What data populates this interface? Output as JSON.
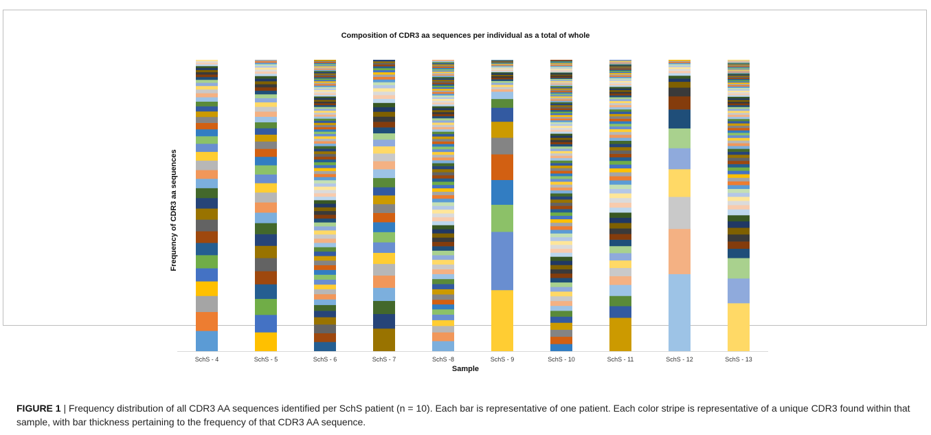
{
  "chart_data": {
    "type": "bar",
    "stacked": true,
    "title": "Composition of CDR3 aa sequences per individual as a total of whole",
    "xlabel": "Sample",
    "ylabel": "Frequency of CDR3 aa sequences",
    "ylim": [
      0,
      1
    ],
    "grid": false,
    "legend": "none",
    "categories": [
      "SchS - 4",
      "SchS - 5",
      "SchS - 6",
      "SchS - 7",
      "SchS -8",
      "SchS - 9",
      "SchS - 10",
      "SchS - 11",
      "SchS - 12",
      "SchS - 13"
    ],
    "samples": [
      {
        "segments": [
          0.07,
          0.065,
          0.055,
          0.05,
          0.045,
          0.045,
          0.042,
          0.04,
          0.04,
          0.038,
          0.036,
          0.034,
          0.032,
          0.03
        ],
        "tail_count": 26,
        "tail_min": 0.004
      },
      {
        "segments": [
          0.065,
          0.06,
          0.055,
          0.05,
          0.045,
          0.045,
          0.042,
          0.04,
          0.038,
          0.036,
          0.035,
          0.034,
          0.032,
          0.03
        ],
        "tail_count": 28,
        "tail_min": 0.004
      },
      {
        "segments": [
          0.032,
          0.03,
          0.03,
          0.025,
          0.022,
          0.02,
          0.019,
          0.018,
          0.017,
          0.016
        ],
        "tail_count": 90,
        "tail_min": 0.003
      },
      {
        "segments": [
          0.078,
          0.05,
          0.045,
          0.045,
          0.042,
          0.04,
          0.038,
          0.036,
          0.035,
          0.034,
          0.032,
          0.03,
          0.03,
          0.028
        ],
        "tail_count": 30,
        "tail_min": 0.004
      },
      {
        "segments": [
          0.035,
          0.03,
          0.022,
          0.02,
          0.019,
          0.018,
          0.017,
          0.016
        ],
        "tail_count": 90,
        "tail_min": 0.003
      },
      {
        "segments": [
          0.21,
          0.2,
          0.093,
          0.085,
          0.088,
          0.057,
          0.055,
          0.048,
          0.03,
          0.025
        ],
        "tail_count": 30,
        "tail_min": 0.003
      },
      {
        "segments": [
          0.025,
          0.025,
          0.024,
          0.024,
          0.021,
          0.02
        ],
        "tail_count": 110,
        "tail_min": 0.003
      },
      {
        "segments": [
          0.115,
          0.04,
          0.035,
          0.038,
          0.03,
          0.028,
          0.026,
          0.025,
          0.024,
          0.022
        ],
        "tail_count": 70,
        "tail_min": 0.003
      },
      {
        "segments": [
          0.265,
          0.155,
          0.11,
          0.095,
          0.072,
          0.068,
          0.065,
          0.045,
          0.03,
          0.02
        ],
        "tail_count": 12,
        "tail_min": 0.005
      },
      {
        "segments": [
          0.165,
          0.085,
          0.07,
          0.032,
          0.025,
          0.024,
          0.023,
          0.022,
          0.021,
          0.02
        ],
        "tail_count": 75,
        "tail_min": 0.003
      }
    ]
  },
  "colors": {
    "palette": [
      "#5b9bd5",
      "#ed7d31",
      "#a5a5a5",
      "#ffc000",
      "#4472c4",
      "#70ad47",
      "#255e91",
      "#9e480e",
      "#636363",
      "#997300",
      "#264478",
      "#43682b",
      "#7cafdd",
      "#f1975a",
      "#b7b7b7",
      "#ffcd33",
      "#698ed0",
      "#8cc168",
      "#327dc2",
      "#d26012",
      "#848484",
      "#cc9a00",
      "#335aa1",
      "#5a8a39",
      "#9dc3e6",
      "#f4b183",
      "#c9c9c9",
      "#ffd966",
      "#8faadc",
      "#a9d18e",
      "#1f4e79",
      "#843c0c",
      "#3a3a3a",
      "#7f6000",
      "#203864",
      "#385723",
      "#bdd7ee",
      "#f8cbad",
      "#dbdbdb",
      "#ffe699",
      "#b4c7e7",
      "#c5e0b4"
    ],
    "axis": "#d9d9d9"
  },
  "caption": {
    "label": "FIGURE 1",
    "separator": " | ",
    "text": "Frequency distribution of all CDR3 AA sequences identified per SchS patient (n = 10). Each bar is representative of one patient. Each color stripe is representative of a unique CDR3 found within that sample, with bar thickness pertaining to the frequency of that CDR3 AA sequence."
  }
}
